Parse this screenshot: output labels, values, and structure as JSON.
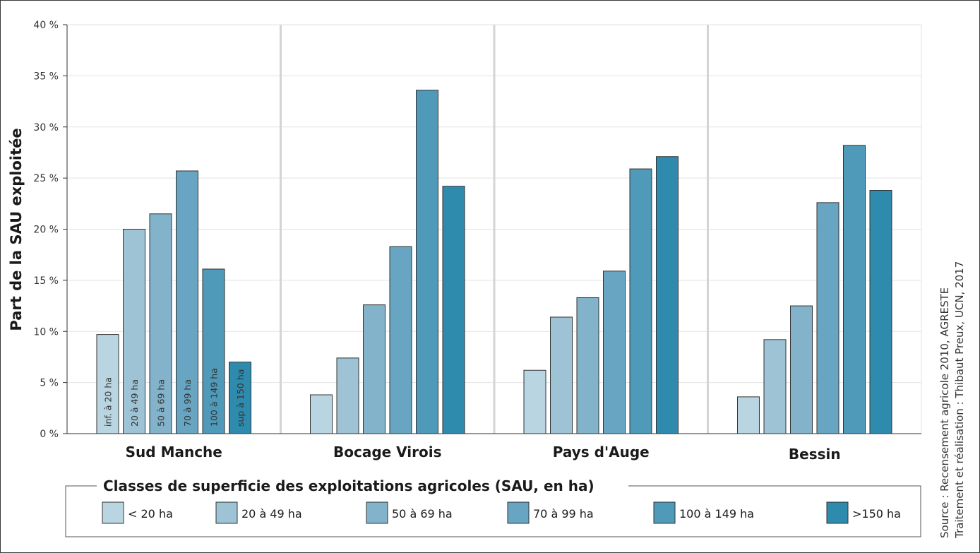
{
  "chart_data": {
    "type": "bar",
    "ylabel": "Part de la SAU exploitée",
    "xlabel": "",
    "ylim": [
      0,
      40
    ],
    "y_ticks": [
      0,
      5,
      10,
      15,
      20,
      25,
      30,
      35,
      40
    ],
    "y_tick_labels": [
      "0 %",
      "5 %",
      "10 %",
      "15 %",
      "20 %",
      "25 %",
      "30 %",
      "35 %",
      "40 %"
    ],
    "grid": true,
    "categories": [
      "Sud Manche",
      "Bocage Virois",
      "Pays d'Auge",
      "Bessin"
    ],
    "series": [
      {
        "name": "< 20 ha",
        "color": "#b8d5e1",
        "values": [
          9.7,
          3.8,
          6.2,
          3.6
        ]
      },
      {
        "name": "20 à 49 ha",
        "color": "#9ec3d5",
        "values": [
          20.0,
          7.4,
          11.4,
          9.2
        ]
      },
      {
        "name": "50 à 69 ha",
        "color": "#82b3cb",
        "values": [
          21.5,
          12.6,
          13.3,
          12.5
        ]
      },
      {
        "name": "70 à 99 ha",
        "color": "#67a5c2",
        "values": [
          25.7,
          18.3,
          15.9,
          22.6
        ]
      },
      {
        "name": "100 à 149 ha",
        "color": "#4f99b9",
        "values": [
          16.1,
          33.6,
          25.9,
          28.2
        ]
      },
      {
        "name": ">150 ha",
        "color": "#2e8bad",
        "values": [
          7.0,
          24.2,
          27.1,
          23.8
        ]
      }
    ],
    "bar_labels_first_group": [
      "inf. à 20 ha",
      "20 à 49 ha",
      "50 à 69 ha",
      "70 à 99 ha",
      "100 à 149 ha",
      "sup à 150 ha"
    ],
    "legend": {
      "title": "Classes de superficie des exploitations agricoles (SAU, en ha)",
      "placement": "bottom"
    },
    "source_lines": [
      "Source : Recensement agricole 2010, AGRESTE",
      "Traitement et réalisation : Thibaut Preux, UCN, 2017"
    ]
  }
}
